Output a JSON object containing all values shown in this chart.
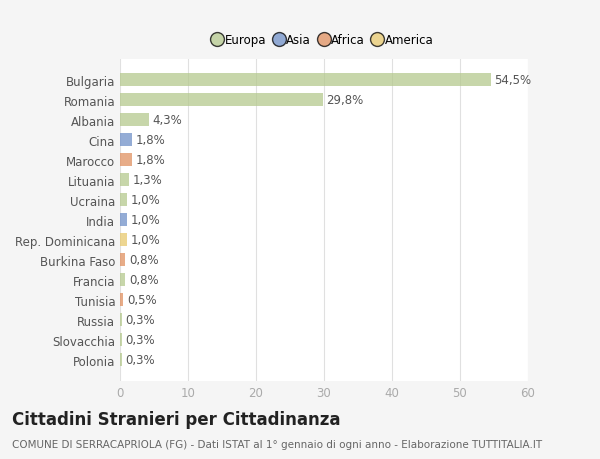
{
  "categories": [
    "Polonia",
    "Slovacchia",
    "Russia",
    "Tunisia",
    "Francia",
    "Burkina Faso",
    "Rep. Dominicana",
    "India",
    "Ucraina",
    "Lituania",
    "Marocco",
    "Cina",
    "Albania",
    "Romania",
    "Bulgaria"
  ],
  "values": [
    0.3,
    0.3,
    0.3,
    0.5,
    0.8,
    0.8,
    1.0,
    1.0,
    1.0,
    1.3,
    1.8,
    1.8,
    4.3,
    29.8,
    54.5
  ],
  "labels": [
    "0,3%",
    "0,3%",
    "0,3%",
    "0,5%",
    "0,8%",
    "0,8%",
    "1,0%",
    "1,0%",
    "1,0%",
    "1,3%",
    "1,8%",
    "1,8%",
    "4,3%",
    "29,8%",
    "54,5%"
  ],
  "colors": [
    "#b5c98e",
    "#b5c98e",
    "#b5c98e",
    "#e09060",
    "#b5c98e",
    "#e09060",
    "#e8c96e",
    "#7090c8",
    "#b5c98e",
    "#b5c98e",
    "#e09060",
    "#7090c8",
    "#b5c98e",
    "#b5c98e",
    "#b5c98e"
  ],
  "legend_labels": [
    "Europa",
    "Asia",
    "Africa",
    "America"
  ],
  "legend_colors": [
    "#b5c98e",
    "#7090c8",
    "#e09060",
    "#e8c96e"
  ],
  "title": "Cittadini Stranieri per Cittadinanza",
  "subtitle": "COMUNE DI SERRACAPRIOLA (FG) - Dati ISTAT al 1° gennaio di ogni anno - Elaborazione TUTTITALIA.IT",
  "xlim": [
    0,
    60
  ],
  "xticks": [
    0,
    10,
    20,
    30,
    40,
    50,
    60
  ],
  "plot_bg_color": "#ffffff",
  "fig_bg_color": "#f5f5f5",
  "grid_color": "#e0e0e0",
  "label_fontsize": 8.5,
  "tick_fontsize": 8.5,
  "title_fontsize": 12,
  "subtitle_fontsize": 7.5,
  "bar_alpha": 0.75
}
